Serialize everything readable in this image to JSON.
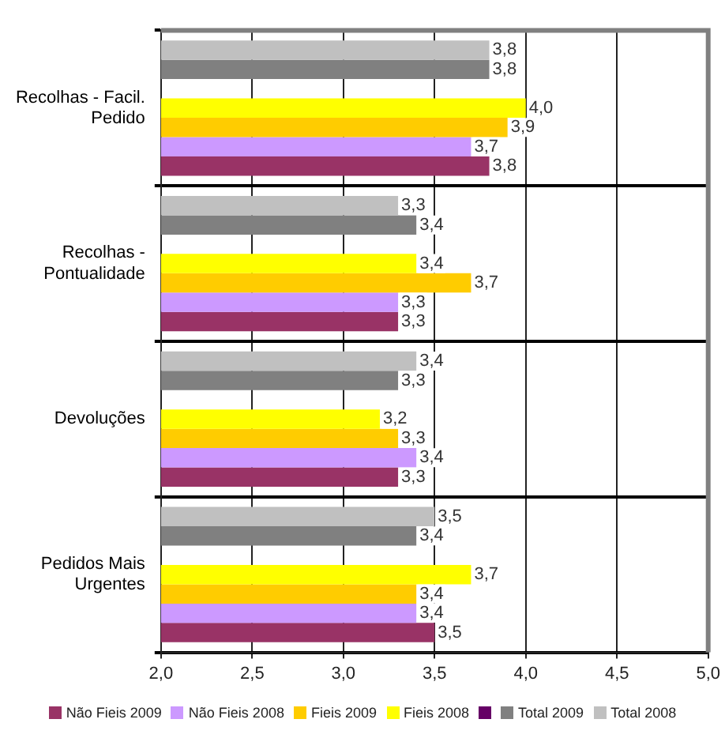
{
  "chart_data": {
    "type": "bar",
    "orientation": "horizontal",
    "categories": [
      "Recolhas - Facil. Pedido",
      "Recolhas - Pontualidade",
      "Devoluções",
      "Pedidos Mais Urgentes"
    ],
    "series": [
      {
        "name": "Total 2008",
        "color": "#c0c0c0",
        "values": [
          3.8,
          3.3,
          3.4,
          3.5
        ],
        "value_labels": [
          "3,8",
          "3,3",
          "3,4",
          "3,5"
        ]
      },
      {
        "name": "Total 2009",
        "color": "#808080",
        "values": [
          3.8,
          3.4,
          3.3,
          3.4
        ],
        "value_labels": [
          "3,8",
          "3,4",
          "3,3",
          "3,4"
        ]
      },
      {
        "color": "#660066",
        "values": [
          null,
          null,
          null,
          null
        ]
      },
      {
        "name": "Fieis 2008",
        "color": "#ffff00",
        "values": [
          4.0,
          3.4,
          3.2,
          3.7
        ],
        "value_labels": [
          "4,0",
          "3,4",
          "3,2",
          "3,7"
        ]
      },
      {
        "name": "Fieis 2009",
        "color": "#ffcc00",
        "values": [
          3.9,
          3.7,
          3.3,
          3.4
        ],
        "value_labels": [
          "3,9",
          "3,7",
          "3,3",
          "3,4"
        ]
      },
      {
        "name": "Não Fieis 2008",
        "color": "#cc99ff",
        "values": [
          3.7,
          3.3,
          3.4,
          3.4
        ],
        "value_labels": [
          "3,7",
          "3,3",
          "3,4",
          "3,4"
        ]
      },
      {
        "name": "Não Fieis 2009",
        "color": "#993366",
        "values": [
          3.8,
          3.3,
          3.3,
          3.5
        ],
        "value_labels": [
          "3,8",
          "3,3",
          "3,3",
          "3,5"
        ]
      }
    ],
    "xlim": [
      2,
      5
    ],
    "xticks": [
      {
        "value": 2,
        "label": "2,0"
      },
      {
        "value": 2.5,
        "label": "2,5"
      },
      {
        "value": 3,
        "label": "3,0"
      },
      {
        "value": 3.5,
        "label": "3,5"
      },
      {
        "value": 4,
        "label": "4,0"
      },
      {
        "value": 4.5,
        "label": "4,5"
      },
      {
        "value": 5,
        "label": "5,0"
      }
    ],
    "grid": true,
    "legend": "bottom"
  }
}
